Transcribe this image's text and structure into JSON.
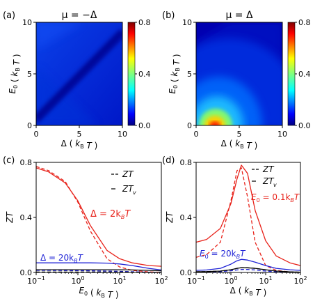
{
  "chart_data": [
    {
      "panel_label": "(a)",
      "type": "heatmap",
      "title": "μ = −Δ",
      "xlabel": "Δ ( kB T )",
      "ylabel": "E0 ( kB T )",
      "xlim": [
        0,
        10
      ],
      "ylim": [
        0,
        10
      ],
      "xticks": [
        "0",
        "5",
        "10"
      ],
      "yticks": [
        "0",
        "5",
        "10"
      ],
      "colorbar": {
        "range": [
          0,
          0.8
        ],
        "ticks": [
          "0.0",
          "0.4",
          "0.8"
        ]
      },
      "features": {
        "near_zero_valley": "diagonal ridge E0 ≈ Δ"
      }
    },
    {
      "panel_label": "(b)",
      "type": "heatmap",
      "title": "μ = Δ",
      "xlabel": "Δ ( kB T )",
      "ylabel": "E0 ( kB T )",
      "xlim": [
        0,
        10
      ],
      "ylim": [
        0,
        10
      ],
      "xticks": [
        "0",
        "5",
        "10"
      ],
      "yticks": [
        "0",
        "5",
        "10"
      ],
      "colorbar": {
        "range": [
          0,
          0.8
        ],
        "ticks": [
          "0.0",
          "0.4",
          "0.8"
        ]
      },
      "features": {
        "peak": {
          "delta": 2.2,
          "e0": 0.1,
          "value": 0.78
        }
      }
    },
    {
      "panel_label": "(c)",
      "type": "line",
      "xlabel": "E0 ( kB T )",
      "ylabel": "ZT",
      "xscale": "log",
      "xlim": [
        0.1,
        100
      ],
      "ylim": [
        0,
        0.8
      ],
      "xticks": [
        "10^-1",
        "10^0",
        "10^1",
        "10^2"
      ],
      "yticks": [
        "0.0",
        "0.4",
        "0.8"
      ],
      "legend": {
        "position": "top-right",
        "entries": [
          "ZT",
          "ZTv"
        ]
      },
      "annotations": [
        "Δ = 2kBT",
        "Δ = 20kBT"
      ],
      "x": [
        0.1,
        0.2,
        0.5,
        1,
        2,
        5,
        10,
        20,
        50,
        100
      ],
      "series": [
        {
          "name": "Δ = 2kBT ZT",
          "color": "#e8231b",
          "style": "dashed",
          "values": [
            0.77,
            0.74,
            0.66,
            0.51,
            0.3,
            0.1,
            0.04,
            0.015,
            0.004,
            0.001
          ]
        },
        {
          "name": "Δ = 2kBT ZTv",
          "color": "#e8231b",
          "style": "solid",
          "values": [
            0.76,
            0.73,
            0.65,
            0.52,
            0.34,
            0.16,
            0.1,
            0.07,
            0.05,
            0.045
          ]
        },
        {
          "name": "Δ = 20kBT ZT",
          "color": "#1f23d6",
          "style": "dashed",
          "values": [
            0.015,
            0.015,
            0.014,
            0.013,
            0.012,
            0.01,
            0.008,
            0.005,
            0.002,
            0.001
          ]
        },
        {
          "name": "Δ = 20kBT ZTv",
          "color": "#1f23d6",
          "style": "solid",
          "values": [
            0.07,
            0.07,
            0.07,
            0.07,
            0.07,
            0.068,
            0.062,
            0.05,
            0.03,
            0.018
          ]
        },
        {
          "name": "ref ZT",
          "color": "#000000",
          "style": "dashed",
          "values": [
            0.003,
            0.003,
            0.003,
            0.003,
            0.003,
            0.003,
            0.003,
            0.002,
            0.001,
            0.001
          ]
        },
        {
          "name": "ref ZTv",
          "color": "#000000",
          "style": "solid",
          "values": [
            0.02,
            0.02,
            0.02,
            0.02,
            0.02,
            0.02,
            0.02,
            0.018,
            0.015,
            0.012
          ]
        }
      ]
    },
    {
      "panel_label": "(d)",
      "type": "line",
      "xlabel": "Δ ( kB T )",
      "ylabel": "ZT",
      "xscale": "log",
      "xlim": [
        0.1,
        100
      ],
      "ylim": [
        0,
        0.8
      ],
      "xticks": [
        "10^-1",
        "10^0",
        "10^1",
        "10^2"
      ],
      "yticks": [
        "0.0",
        "0.4",
        "0.8"
      ],
      "legend": {
        "position": "top-right",
        "entries": [
          "ZT",
          "ZTv"
        ]
      },
      "annotations": [
        "E0 = 0.1kBT",
        "E0 = 20kBT"
      ],
      "x": [
        0.1,
        0.2,
        0.5,
        1,
        1.5,
        2,
        3,
        5,
        10,
        20,
        50,
        100
      ],
      "series": [
        {
          "name": "E0 = 0.1kBT ZT",
          "color": "#e8231b",
          "style": "dashed",
          "values": [
            0.11,
            0.13,
            0.22,
            0.52,
            0.74,
            0.76,
            0.55,
            0.22,
            0.05,
            0.015,
            0.003,
            0.001
          ]
        },
        {
          "name": "E0 = 0.1kBT ZTv",
          "color": "#e8231b",
          "style": "solid",
          "values": [
            0.22,
            0.24,
            0.32,
            0.5,
            0.68,
            0.78,
            0.72,
            0.45,
            0.23,
            0.12,
            0.07,
            0.05
          ]
        },
        {
          "name": "E0 = 20kBT ZT",
          "color": "#1f23d6",
          "style": "dashed",
          "values": [
            0.002,
            0.003,
            0.006,
            0.012,
            0.018,
            0.022,
            0.022,
            0.018,
            0.01,
            0.005,
            0.002,
            0.001
          ]
        },
        {
          "name": "E0 = 20kBT ZTv",
          "color": "#1f23d6",
          "style": "solid",
          "values": [
            0.015,
            0.018,
            0.03,
            0.06,
            0.085,
            0.095,
            0.09,
            0.075,
            0.05,
            0.03,
            0.02,
            0.015
          ]
        },
        {
          "name": "ref ZT",
          "color": "#000000",
          "style": "dashed",
          "values": [
            0.005,
            0.006,
            0.01,
            0.02,
            0.03,
            0.035,
            0.034,
            0.03,
            0.02,
            0.01,
            0.004,
            0.002
          ]
        },
        {
          "name": "ref ZTv",
          "color": "#000000",
          "style": "solid",
          "values": [
            0.005,
            0.006,
            0.01,
            0.02,
            0.03,
            0.035,
            0.034,
            0.03,
            0.02,
            0.01,
            0.004,
            0.002
          ]
        }
      ]
    }
  ],
  "labels": {
    "a": "(a)",
    "b": "(b)",
    "c": "(c)",
    "d": "(d)",
    "title_a": "μ = −Δ",
    "title_b": "μ = Δ",
    "legend_zt": "ZT",
    "legend_ztv": "ZT",
    "legend_ztv_sub": "v",
    "ann_c_red": "Δ = 2k",
    "ann_c_blue": "Δ = 20k",
    "ann_d_red": "E",
    "ann_d_red_rest": " = 0.1k",
    "ann_d_blue": "E",
    "ann_d_blue_rest": " = 20k"
  }
}
